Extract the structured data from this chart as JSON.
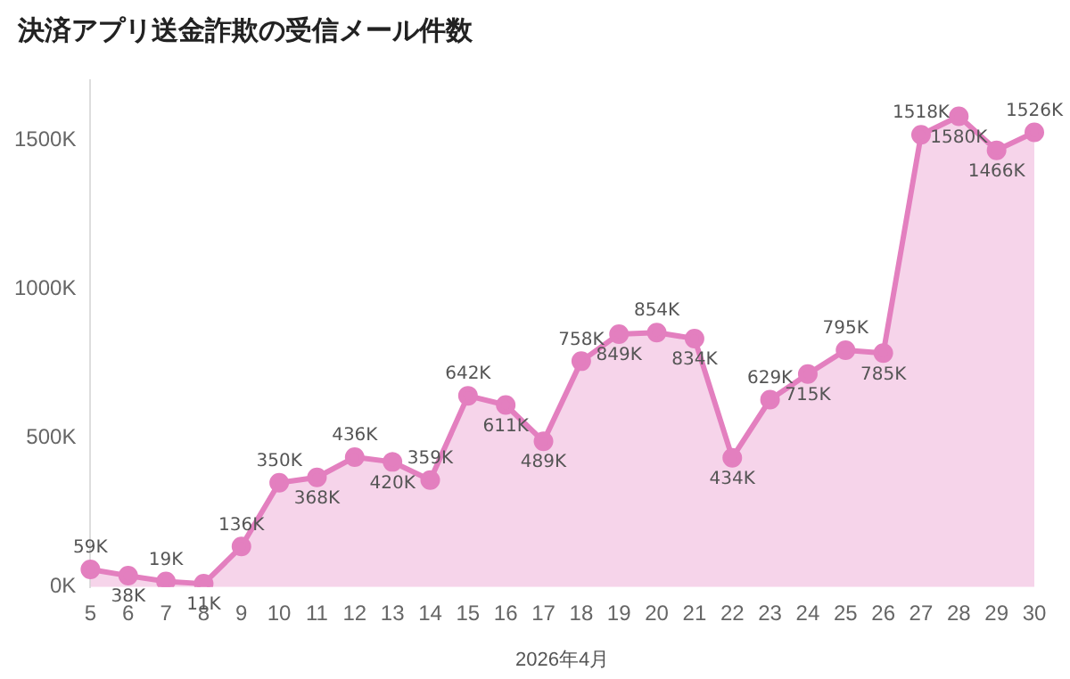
{
  "chart_data": {
    "type": "area",
    "title": "決済アプリ送金詐欺の受信メール件数",
    "xlabel": "2026年4月",
    "categories": [
      "5",
      "6",
      "7",
      "8",
      "9",
      "10",
      "11",
      "12",
      "13",
      "14",
      "15",
      "16",
      "17",
      "18",
      "19",
      "20",
      "21",
      "22",
      "23",
      "24",
      "25",
      "26",
      "27",
      "28",
      "29",
      "30"
    ],
    "series": [
      {
        "color": "#e37fbf",
        "values": [
          59,
          38,
          19,
          11,
          136,
          350,
          368,
          436,
          420,
          359,
          642,
          611,
          489,
          758,
          849,
          854,
          834,
          434,
          629,
          715,
          795,
          785,
          1518,
          1580,
          1466,
          1526
        ],
        "value_labels": [
          "59K",
          "38K",
          "19K",
          "11K",
          "136K",
          "350K",
          "368K",
          "436K",
          "420K",
          "359K",
          "642K",
          "611K",
          "489K",
          "758K",
          "849K",
          "854K",
          "834K",
          "434K",
          "629K",
          "715K",
          "795K",
          "785K",
          "1518K",
          "1580K",
          "1466K",
          "1526K"
        ]
      }
    ],
    "ylim": [
      0,
      1700
    ],
    "yticks": [
      {
        "value": 0,
        "label": "0K"
      },
      {
        "value": 500,
        "label": "500K"
      },
      {
        "value": 1000,
        "label": "1000K"
      },
      {
        "value": 1500,
        "label": "1500K"
      }
    ],
    "grid": false,
    "legend": false,
    "marker": "circle",
    "line_style": "solid"
  }
}
